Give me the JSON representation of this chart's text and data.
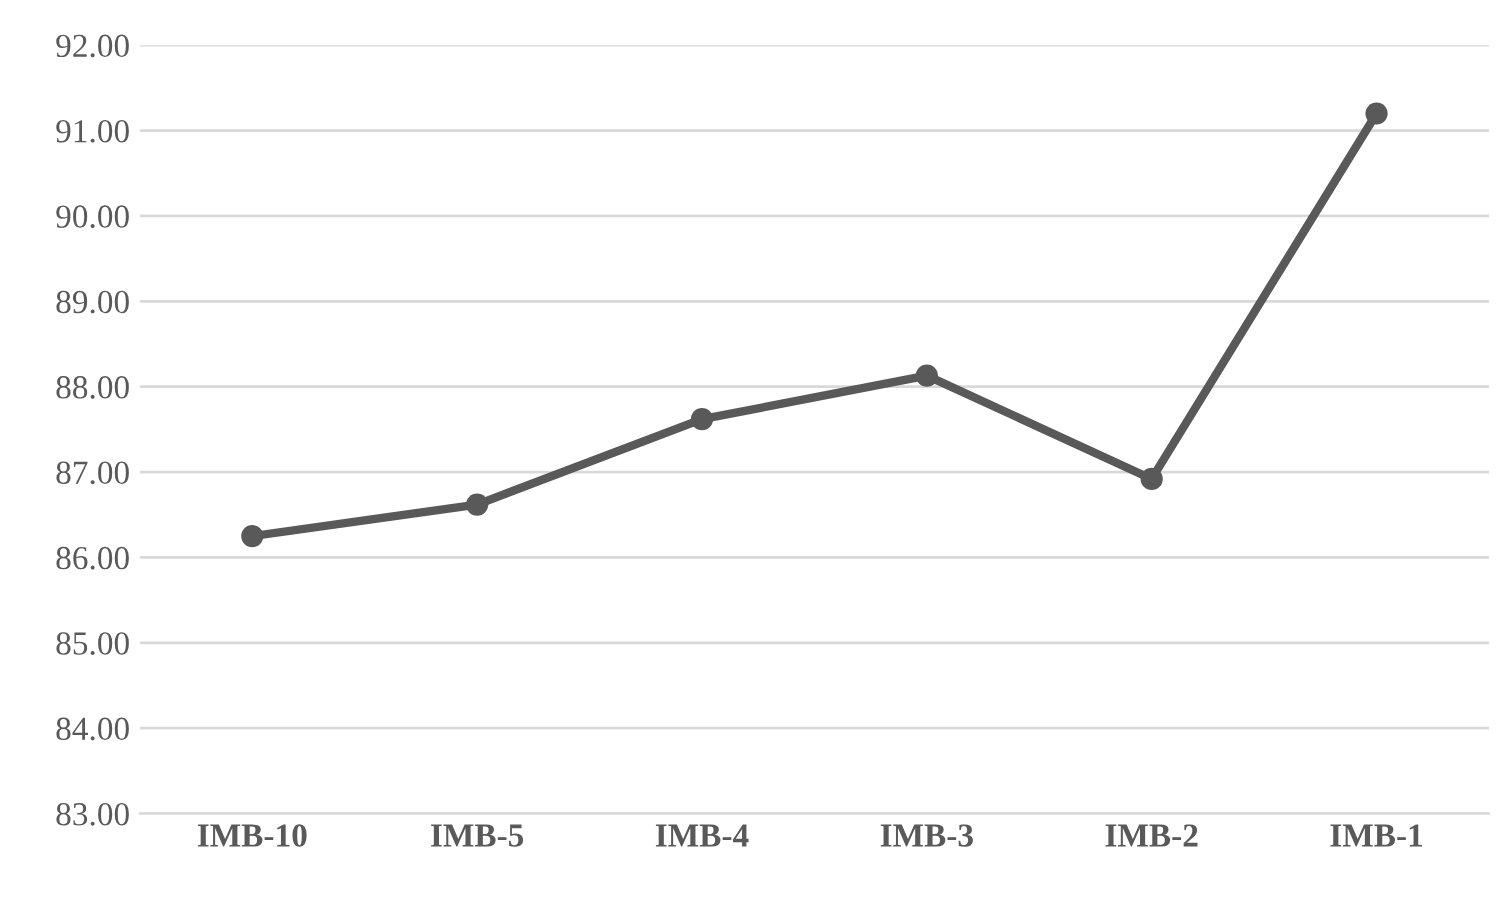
{
  "chart_data": {
    "type": "line",
    "categories": [
      "IMB-10",
      "IMB-5",
      "IMB-4",
      "IMB-3",
      "IMB-2",
      "IMB-1"
    ],
    "series": [
      {
        "color": "#595959",
        "values": [
          86.25,
          86.62,
          87.62,
          88.13,
          86.92,
          91.2
        ]
      }
    ],
    "ylim": [
      83,
      92
    ],
    "yticks": [
      {
        "value": 83,
        "label": "83.00"
      },
      {
        "value": 84,
        "label": "84.00"
      },
      {
        "value": 85,
        "label": "85.00"
      },
      {
        "value": 86,
        "label": "86.00"
      },
      {
        "value": 87,
        "label": "87.00"
      },
      {
        "value": 88,
        "label": "88.00"
      },
      {
        "value": 89,
        "label": "89.00"
      },
      {
        "value": 90,
        "label": "90.00"
      },
      {
        "value": 91,
        "label": "91.00"
      },
      {
        "value": 92,
        "label": "92.00"
      }
    ],
    "grid": "y",
    "marker": "circle",
    "line_style": "solid",
    "legend": false
  }
}
